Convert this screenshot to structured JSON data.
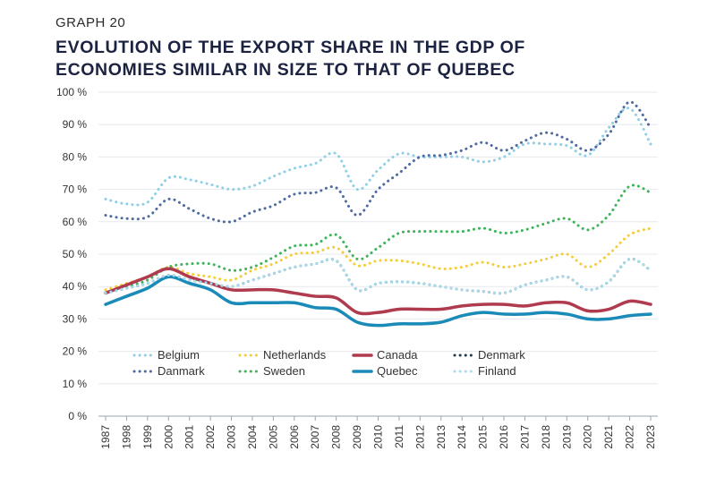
{
  "header": {
    "graph_label": "GRAPH 20",
    "title_line1": "EVOLUTION OF THE EXPORT SHARE IN THE GDP OF",
    "title_line2": "ECONOMIES SIMILAR IN SIZE TO THAT OF QUEBEC"
  },
  "chart_data": {
    "type": "line",
    "title": "EVOLUTION OF THE EXPORT SHARE IN THE GDP OF ECONOMIES SIMILAR IN SIZE TO THAT OF QUEBEC",
    "xlabel": "",
    "ylabel": "",
    "ylim": [
      0,
      100
    ],
    "yticks": [
      "0 %",
      "10 %",
      "20 %",
      "30 %",
      "40 %",
      "50 %",
      "60 %",
      "70 %",
      "80 %",
      "90 %",
      "100 %"
    ],
    "categories": [
      "1987",
      "1998",
      "1999",
      "2000",
      "2001",
      "2002",
      "2003",
      "2004",
      "2005",
      "2006",
      "2007",
      "2008",
      "2009",
      "2010",
      "2011",
      "2012",
      "2013",
      "2014",
      "2015",
      "2016",
      "2017",
      "2018",
      "2019",
      "2020",
      "2021",
      "2022",
      "2023"
    ],
    "series": [
      {
        "name": "Belgium",
        "color": "#8ecfe6",
        "style": "dotted",
        "values": [
          67,
          65.5,
          66,
          73.5,
          73,
          71.5,
          70,
          71,
          74,
          76.5,
          78,
          81,
          70,
          76,
          81,
          80,
          80,
          80,
          78.5,
          80,
          84,
          84,
          83.5,
          80.5,
          89,
          95,
          84
        ]
      },
      {
        "name": "Danmark",
        "color": "#4e6aa0",
        "style": "dotted",
        "values": [
          62,
          61,
          61.5,
          67,
          64,
          61,
          60,
          63,
          65,
          68.5,
          69,
          70.5,
          62,
          70,
          75,
          80,
          80.5,
          82,
          84.5,
          82,
          85,
          87.5,
          85.5,
          82,
          87,
          97,
          89
        ]
      },
      {
        "name": "Netherlands",
        "color": "#f4cc3a",
        "style": "dotted",
        "values": [
          39,
          41,
          43,
          46,
          44,
          43,
          42,
          45,
          47,
          50,
          50.5,
          52,
          46.5,
          48,
          48,
          47,
          45.5,
          46,
          47.5,
          46,
          47,
          48.5,
          50,
          46,
          50,
          56,
          58
        ]
      },
      {
        "name": "Sweden",
        "color": "#3db35a",
        "style": "dotted",
        "values": [
          38,
          40,
          42,
          46,
          47,
          47,
          45,
          46,
          49,
          52.5,
          53,
          56,
          48.5,
          52,
          56.5,
          57,
          57,
          57,
          58,
          56.5,
          57.5,
          59.5,
          61,
          57.5,
          62,
          71,
          69
        ]
      },
      {
        "name": "Canada",
        "color": "#b03a4e",
        "style": "solid",
        "values": [
          38,
          40.5,
          43,
          45.5,
          43,
          41,
          39,
          39,
          39,
          38,
          37,
          36.5,
          32,
          32,
          33,
          33,
          33,
          34,
          34.5,
          34.5,
          34,
          35,
          35,
          32.5,
          33,
          35.5,
          34.5
        ]
      },
      {
        "name": "Denmark",
        "color": "#1f3a4d",
        "style": "dotted",
        "values": [
          38,
          39.5,
          41,
          43.5,
          42,
          41,
          40,
          42,
          44,
          46,
          47,
          48,
          39,
          41,
          41.5,
          41,
          40,
          39,
          38.5,
          38,
          40.5,
          42,
          43,
          39,
          41.5,
          48.5,
          45
        ]
      },
      {
        "name": "Quebec",
        "color": "#1a8bb8",
        "style": "solid",
        "values": [
          34.5,
          37,
          39.5,
          43,
          41,
          39,
          35,
          35,
          35,
          35,
          33.5,
          33,
          29,
          28,
          28.5,
          28.5,
          29,
          31,
          32,
          31.5,
          31.5,
          32,
          31.5,
          30,
          30,
          31,
          31.5
        ]
      },
      {
        "name": "Finland",
        "color": "#a7dcef",
        "style": "dotted",
        "values": [
          38,
          39.5,
          41,
          43.5,
          42,
          41,
          40,
          42,
          44,
          46,
          47,
          48,
          39,
          41,
          41.5,
          41,
          40,
          39,
          38.5,
          38,
          40.5,
          42,
          43,
          39,
          41.5,
          48.5,
          45
        ]
      }
    ],
    "legend": {
      "placement": "bottom-left",
      "entries": [
        "Belgium",
        "Netherlands",
        "Canada",
        "Denmark",
        "Danmark",
        "Sweden",
        "Quebec",
        "Finland"
      ]
    }
  }
}
